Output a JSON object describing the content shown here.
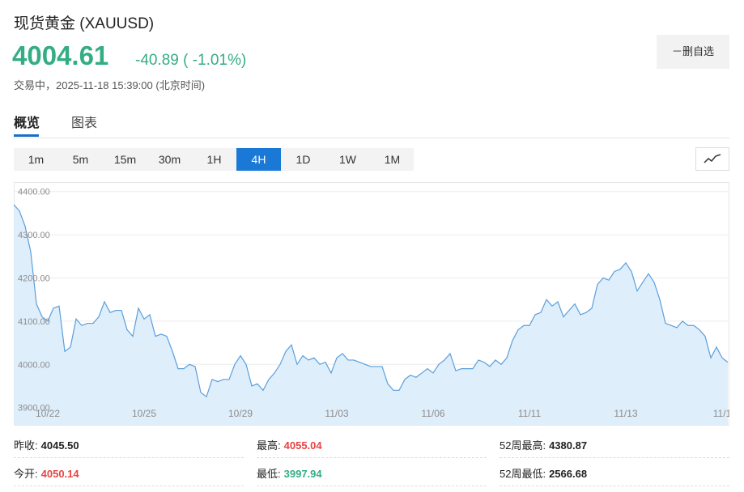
{
  "header": {
    "title": "现货黄金 (XAUUSD)",
    "price": "4004.61",
    "change": "-40.89 ( -1.01%)",
    "status": "交易中，2025-11-18 15:39:00 (北京时间)",
    "button": "－删自选"
  },
  "tabs": [
    "概览",
    "图表"
  ],
  "periods": [
    "1m",
    "5m",
    "15m",
    "30m",
    "1H",
    "4H",
    "1D",
    "1W",
    "1M"
  ],
  "chart_data": {
    "type": "area",
    "color": "#5a9fdc",
    "fill": "#dfeefb",
    "grid": true,
    "categories": [
      null,
      null,
      null,
      null,
      null,
      null,
      "10/22",
      null,
      null,
      null,
      null,
      null,
      null,
      null,
      null,
      null,
      null,
      null,
      null,
      null,
      null,
      null,
      null,
      "10/25",
      null,
      null,
      null,
      null,
      null,
      null,
      null,
      null,
      null,
      null,
      null,
      null,
      null,
      null,
      null,
      null,
      "10/29",
      null,
      null,
      null,
      null,
      null,
      null,
      null,
      null,
      null,
      null,
      null,
      null,
      null,
      null,
      null,
      null,
      "11/03",
      null,
      null,
      null,
      null,
      null,
      null,
      null,
      null,
      null,
      null,
      null,
      null,
      null,
      null,
      null,
      null,
      "11/06",
      null,
      null,
      null,
      null,
      null,
      null,
      null,
      null,
      null,
      null,
      null,
      null,
      null,
      null,
      null,
      null,
      "11/11",
      null,
      null,
      null,
      null,
      null,
      null,
      null,
      null,
      null,
      null,
      null,
      null,
      null,
      null,
      null,
      null,
      "11/13",
      null,
      null,
      null,
      null,
      null,
      null,
      null,
      null,
      null,
      null,
      null,
      null,
      null,
      null,
      null,
      null,
      "11/1",
      null
    ],
    "values": [
      4370,
      4355,
      4320,
      4260,
      4140,
      4110,
      4100,
      4130,
      4135,
      4030,
      4040,
      4105,
      4090,
      4095,
      4095,
      4110,
      4145,
      4120,
      4125,
      4125,
      4080,
      4065,
      4130,
      4105,
      4115,
      4065,
      4070,
      4065,
      4030,
      3990,
      3990,
      4000,
      3995,
      3935,
      3925,
      3965,
      3960,
      3965,
      3965,
      4000,
      4020,
      4000,
      3950,
      3955,
      3940,
      3965,
      3980,
      4000,
      4030,
      4045,
      4000,
      4020,
      4010,
      4015,
      4000,
      4005,
      3980,
      4015,
      4025,
      4010,
      4010,
      4005,
      4000,
      3995,
      3995,
      3995,
      3955,
      3940,
      3940,
      3965,
      3975,
      3970,
      3980,
      3990,
      3980,
      4000,
      4010,
      4025,
      3985,
      3990,
      3990,
      3990,
      4010,
      4005,
      3995,
      4010,
      4000,
      4015,
      4055,
      4080,
      4090,
      4090,
      4115,
      4120,
      4150,
      4135,
      4145,
      4110,
      4125,
      4140,
      4115,
      4120,
      4130,
      4185,
      4200,
      4195,
      4215,
      4220,
      4235,
      4215,
      4170,
      4190,
      4210,
      4190,
      4150,
      4095,
      4090,
      4085,
      4100,
      4090,
      4090,
      4080,
      4065,
      4015,
      4040,
      4015,
      4005
    ],
    "ylim": [
      3860,
      4422
    ],
    "yticks": [
      {
        "value": 3900,
        "label": "3900.00"
      },
      {
        "value": 4000,
        "label": "4000.00"
      },
      {
        "value": 4100,
        "label": "4100.00"
      },
      {
        "value": 4200,
        "label": "4200.00"
      },
      {
        "value": 4300,
        "label": "4300.00"
      },
      {
        "value": 4400,
        "label": "4400.00"
      }
    ]
  },
  "stats": [
    [
      {
        "label": "昨收:",
        "value": "4045.50"
      },
      {
        "label": "最高:",
        "value": "4055.04"
      },
      {
        "label": "52周最高:",
        "value": "4380.87"
      }
    ],
    [
      {
        "label": "今开:",
        "value": "4050.14"
      },
      {
        "label": "最低:",
        "value": "3997.94"
      },
      {
        "label": "52周最低:",
        "value": "2566.68"
      }
    ]
  ]
}
